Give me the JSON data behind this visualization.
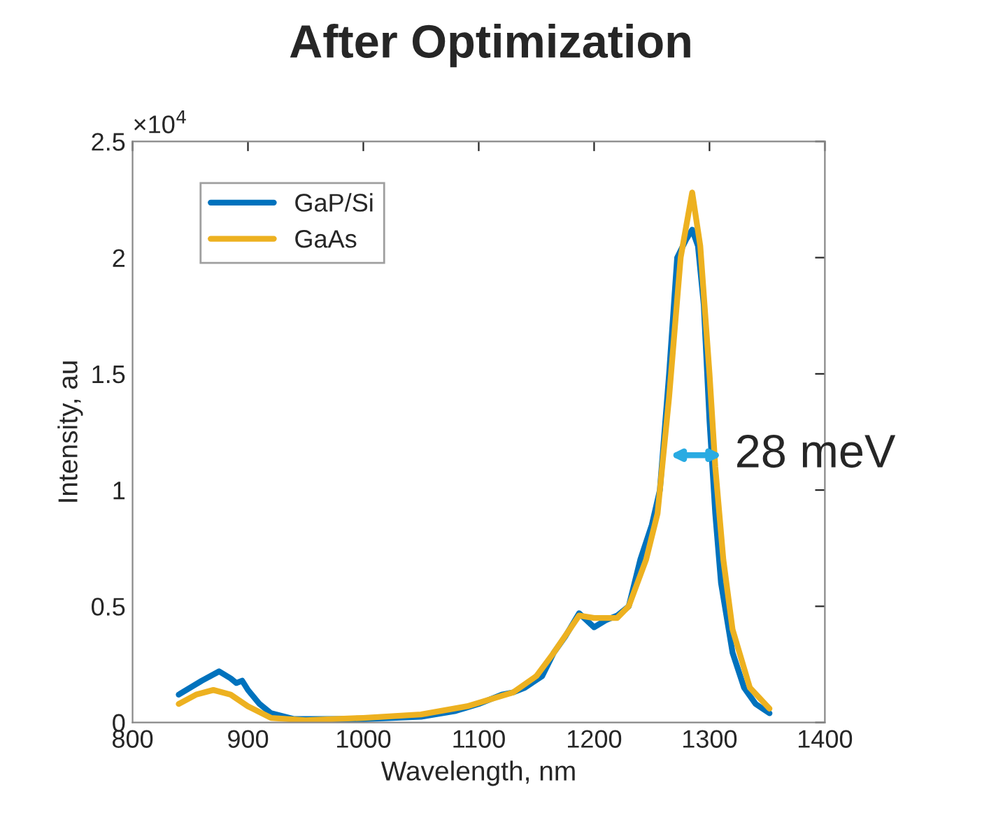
{
  "chart_data": {
    "type": "line",
    "title": "After Optimization",
    "xlabel": "Wavelength, nm",
    "ylabel": "Intensity, au",
    "xlim": [
      800,
      1400
    ],
    "xticks": [
      800,
      900,
      1000,
      1100,
      1200,
      1300,
      1400
    ],
    "ylim": [
      0,
      2.5
    ],
    "yticks": [
      0,
      0.5,
      1,
      1.5,
      2,
      2.5
    ],
    "grid": false,
    "legend": "top left",
    "annotations": [
      "×10$^{4}$",
      "28 meV"
    ],
    "series": [
      {
        "name": "GaP/Si",
        "color": "#0072bd",
        "x": [
          840,
          860,
          875,
          885,
          890,
          895,
          900,
          910,
          920,
          940,
          1000,
          1050,
          1080,
          1100,
          1120,
          1130,
          1140,
          1155,
          1165,
          1175,
          1187,
          1200,
          1210,
          1220,
          1230,
          1240,
          1250,
          1257,
          1265,
          1272,
          1280,
          1285,
          1290,
          1295,
          1300,
          1305,
          1310,
          1320,
          1330,
          1340,
          1352
        ],
        "values": [
          0.12,
          0.18,
          0.22,
          0.19,
          0.17,
          0.18,
          0.14,
          0.08,
          0.04,
          0.015,
          0.015,
          0.025,
          0.05,
          0.08,
          0.12,
          0.13,
          0.15,
          0.2,
          0.3,
          0.37,
          0.47,
          0.41,
          0.44,
          0.46,
          0.5,
          0.7,
          0.85,
          1.0,
          1.5,
          2.0,
          2.08,
          2.12,
          2.05,
          1.8,
          1.3,
          0.9,
          0.6,
          0.3,
          0.15,
          0.08,
          0.04
        ]
      },
      {
        "name": "GaAs",
        "color": "#edb120",
        "x": [
          840,
          855,
          870,
          885,
          900,
          920,
          950,
          1000,
          1050,
          1090,
          1110,
          1130,
          1150,
          1165,
          1187,
          1200,
          1220,
          1230,
          1245,
          1255,
          1265,
          1275,
          1285,
          1292,
          1300,
          1305,
          1312,
          1320,
          1335,
          1352
        ],
        "values": [
          0.08,
          0.12,
          0.14,
          0.12,
          0.07,
          0.02,
          0.01,
          0.02,
          0.035,
          0.07,
          0.1,
          0.13,
          0.2,
          0.3,
          0.46,
          0.45,
          0.45,
          0.5,
          0.7,
          0.9,
          1.4,
          2.0,
          2.28,
          2.05,
          1.5,
          1.1,
          0.7,
          0.4,
          0.15,
          0.06
        ]
      }
    ]
  }
}
